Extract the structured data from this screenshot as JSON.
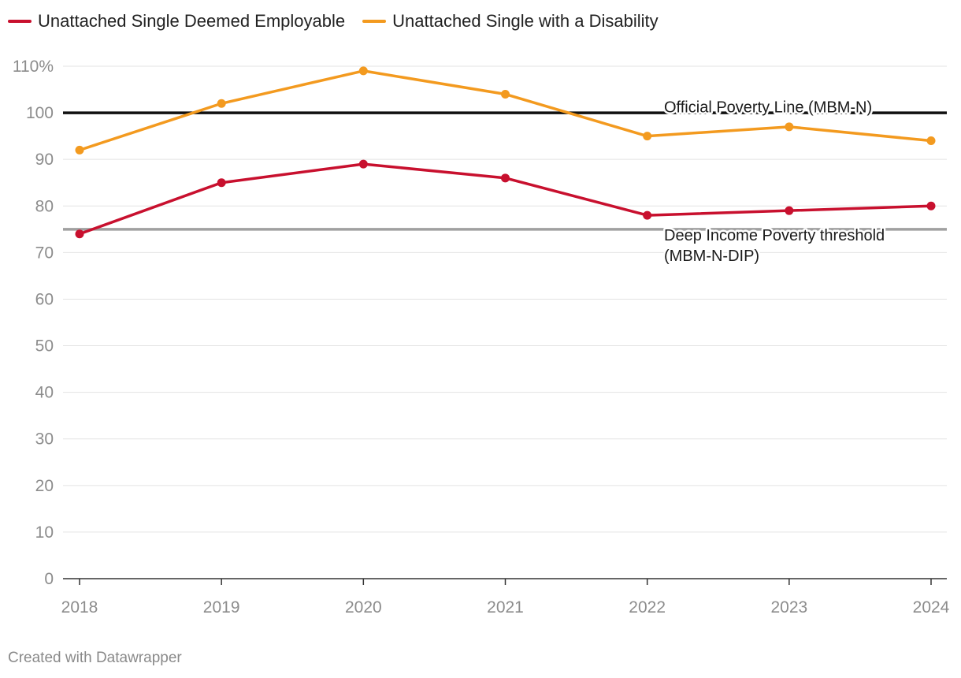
{
  "chart_data": {
    "type": "line",
    "categories": [
      "2018",
      "2019",
      "2020",
      "2021",
      "2022",
      "2023",
      "2024"
    ],
    "series": [
      {
        "name": "Unattached Single Deemed Employable",
        "color": "#c8102e",
        "values": [
          74,
          85,
          89,
          86,
          78,
          79,
          80
        ]
      },
      {
        "name": "Unattached Single with a Disability",
        "color": "#f39a1f",
        "values": [
          92,
          102,
          109,
          104,
          95,
          97,
          94
        ]
      }
    ],
    "reference_lines": [
      {
        "value": 100,
        "color": "#111111",
        "label_lines": [
          "Official Poverty Line (MBM-N)"
        ]
      },
      {
        "value": 75,
        "color": "#a0a0a0",
        "label_lines": [
          "Deep Income Poverty threshold",
          "(MBM-N-DIP)"
        ]
      }
    ],
    "y_ticks": [
      0,
      10,
      20,
      30,
      40,
      50,
      60,
      70,
      80,
      90,
      100,
      110
    ],
    "y_tick_labels": [
      "0",
      "10",
      "20",
      "30",
      "40",
      "50",
      "60",
      "70",
      "80",
      "90",
      "100",
      "110%"
    ],
    "ylim": [
      0,
      110
    ],
    "xlabel": "",
    "ylabel": "",
    "legend_position": "top-left"
  },
  "footer": "Created with Datawrapper"
}
